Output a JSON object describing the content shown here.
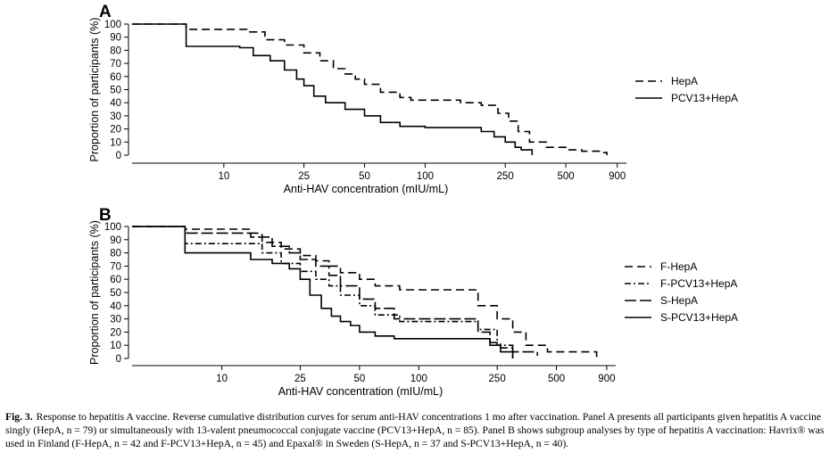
{
  "chart_data": [
    {
      "type": "line",
      "panel": "A",
      "xscale": "log",
      "xlabel": "Anti-HAV concentration (mIU/mL)",
      "ylabel": "Proportion of participants (%)",
      "xticks": [
        10,
        25,
        50,
        100,
        250,
        500,
        900
      ],
      "yticks": [
        0,
        10,
        20,
        30,
        40,
        50,
        60,
        70,
        80,
        90,
        100
      ],
      "xlim": [
        3.5,
        1000
      ],
      "ylim": [
        0,
        100
      ],
      "legend_position": "right",
      "series": [
        {
          "name": "HepA",
          "dash": "dashed",
          "x": [
            3.5,
            6.5,
            13,
            16,
            20,
            25,
            30,
            35,
            40,
            45,
            50,
            60,
            75,
            85,
            90,
            100,
            150,
            190,
            230,
            260,
            290,
            330,
            400,
            500,
            600,
            750,
            800
          ],
          "y": [
            100,
            96,
            94,
            88,
            84,
            78,
            72,
            66,
            62,
            58,
            54,
            48,
            44,
            42,
            42,
            42,
            40,
            38,
            32,
            26,
            18,
            10,
            6,
            4,
            3,
            2,
            0
          ]
        },
        {
          "name": "PCV13+HepA",
          "dash": "solid",
          "x": [
            3.5,
            6.5,
            12,
            14,
            17,
            20,
            23,
            25,
            28,
            32,
            40,
            50,
            60,
            75,
            100,
            170,
            190,
            220,
            250,
            280,
            300,
            340
          ],
          "y": [
            100,
            83,
            82,
            76,
            72,
            65,
            58,
            53,
            45,
            40,
            35,
            30,
            25,
            22,
            21,
            21,
            18,
            14,
            10,
            6,
            4,
            0
          ]
        }
      ]
    },
    {
      "type": "line",
      "panel": "B",
      "xscale": "log",
      "xlabel": "Anti-HAV concentration (mIU/mL)",
      "ylabel": "Proportion of participants (%)",
      "xticks": [
        10,
        25,
        50,
        100,
        250,
        500,
        900
      ],
      "yticks": [
        0,
        10,
        20,
        30,
        40,
        50,
        60,
        70,
        80,
        90,
        100
      ],
      "xlim": [
        3.5,
        1000
      ],
      "ylim": [
        0,
        100
      ],
      "legend_position": "right",
      "series": [
        {
          "name": "F-HepA",
          "dash": "dashed",
          "x": [
            3.5,
            6.5,
            14,
            16,
            20,
            25,
            30,
            35,
            40,
            50,
            60,
            80,
            100,
            150,
            200,
            250,
            300,
            350,
            450,
            600,
            800
          ],
          "y": [
            100,
            98,
            95,
            88,
            83,
            78,
            74,
            70,
            65,
            60,
            55,
            52,
            52,
            52,
            40,
            30,
            20,
            10,
            5,
            5,
            0
          ]
        },
        {
          "name": "F-PCV13+HepA",
          "dash": "dashdot",
          "x": [
            3.5,
            6.5,
            14,
            16,
            20,
            25,
            30,
            35,
            40,
            50,
            60,
            80,
            100,
            150,
            200,
            250,
            300
          ],
          "y": [
            100,
            87,
            87,
            80,
            72,
            66,
            60,
            55,
            48,
            40,
            33,
            28,
            28,
            28,
            22,
            10,
            0
          ]
        },
        {
          "name": "S-HepA",
          "dash": "longdash",
          "x": [
            3.5,
            6.5,
            12,
            14,
            18,
            22,
            25,
            30,
            35,
            40,
            50,
            60,
            75,
            100,
            170,
            200,
            230,
            260,
            300,
            400
          ],
          "y": [
            100,
            95,
            95,
            92,
            85,
            80,
            75,
            70,
            63,
            55,
            45,
            38,
            30,
            30,
            30,
            20,
            12,
            8,
            5,
            2
          ]
        },
        {
          "name": "S-PCV13+HepA",
          "dash": "solid",
          "x": [
            3.5,
            6.5,
            12,
            14,
            18,
            22,
            25,
            28,
            32,
            36,
            40,
            45,
            50,
            60,
            75,
            100,
            200,
            230,
            260,
            300
          ],
          "y": [
            100,
            80,
            80,
            75,
            72,
            68,
            60,
            48,
            38,
            32,
            28,
            25,
            20,
            17,
            15,
            15,
            15,
            10,
            5,
            0
          ]
        }
      ]
    }
  ],
  "panels": [
    {
      "label": "A"
    },
    {
      "label": "B"
    }
  ],
  "caption": {
    "label": "Fig. 3.",
    "text": "Response to hepatitis A vaccine. Reverse cumulative distribution curves for serum anti-HAV concentrations 1 mo after vaccination. Panel A presents all participants given hepatitis A vaccine singly (HepA, n = 79) or simultaneously with 13-valent pneumococcal conjugate vaccine (PCV13+HepA, n = 85). Panel B shows subgroup analyses by type of hepatitis A vaccination: Havrix® was used in Finland (F-HepA, n = 42 and F-PCV13+HepA, n = 45) and Epaxal® in Sweden (S-HepA, n = 37 and S-PCV13+HepA, n = 40)."
  }
}
